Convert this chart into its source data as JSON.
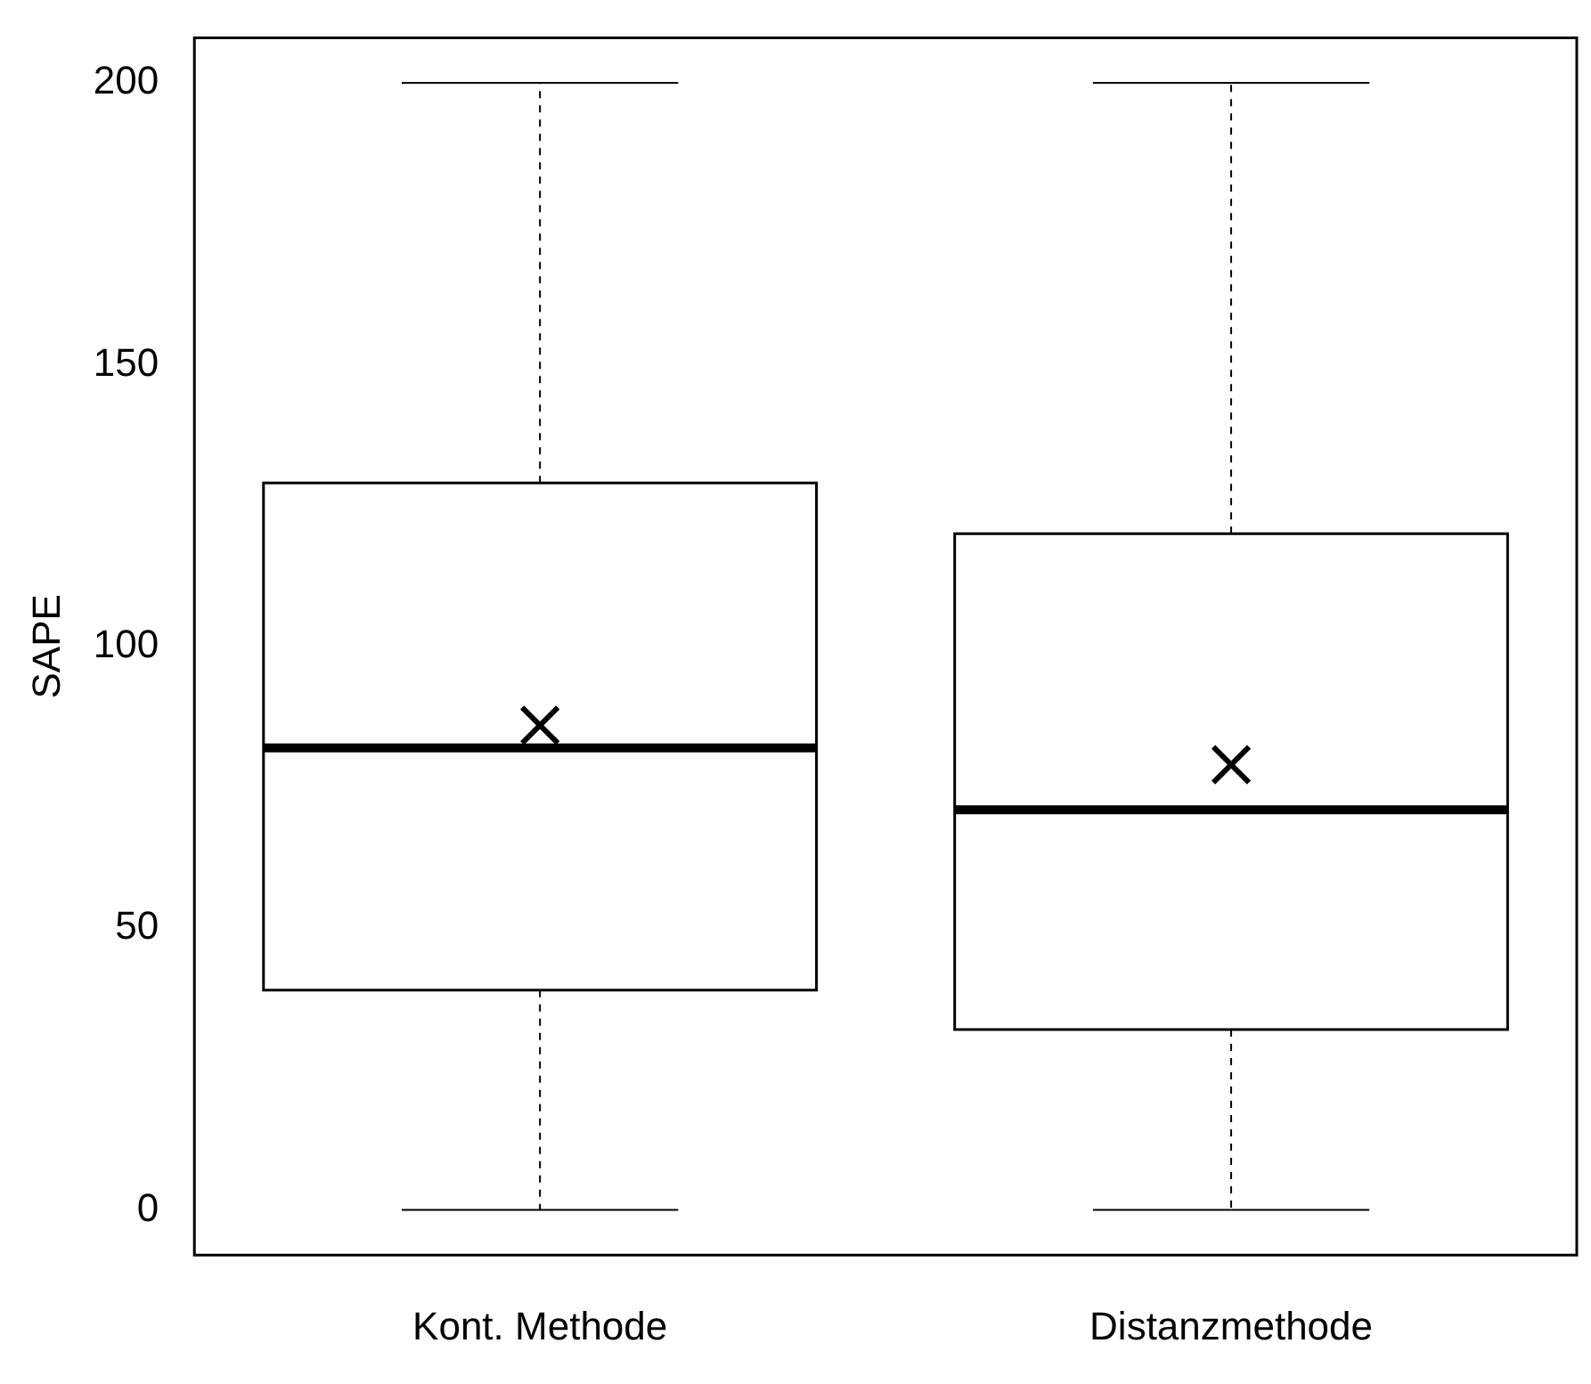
{
  "chart_data": {
    "type": "box",
    "ylabel": "SAPE",
    "categories": [
      "Kont. Methode",
      "Distanzmethode"
    ],
    "boxes": [
      {
        "low": 0,
        "q1": 39,
        "median": 82,
        "q3": 129,
        "high": 200,
        "mean": 86
      },
      {
        "low": 0,
        "q1": 32,
        "median": 71,
        "q3": 120,
        "high": 200,
        "mean": 79
      }
    ],
    "ylim": [
      -8,
      208
    ],
    "yticks": [
      0,
      50,
      100,
      150,
      200
    ],
    "grid": false
  }
}
